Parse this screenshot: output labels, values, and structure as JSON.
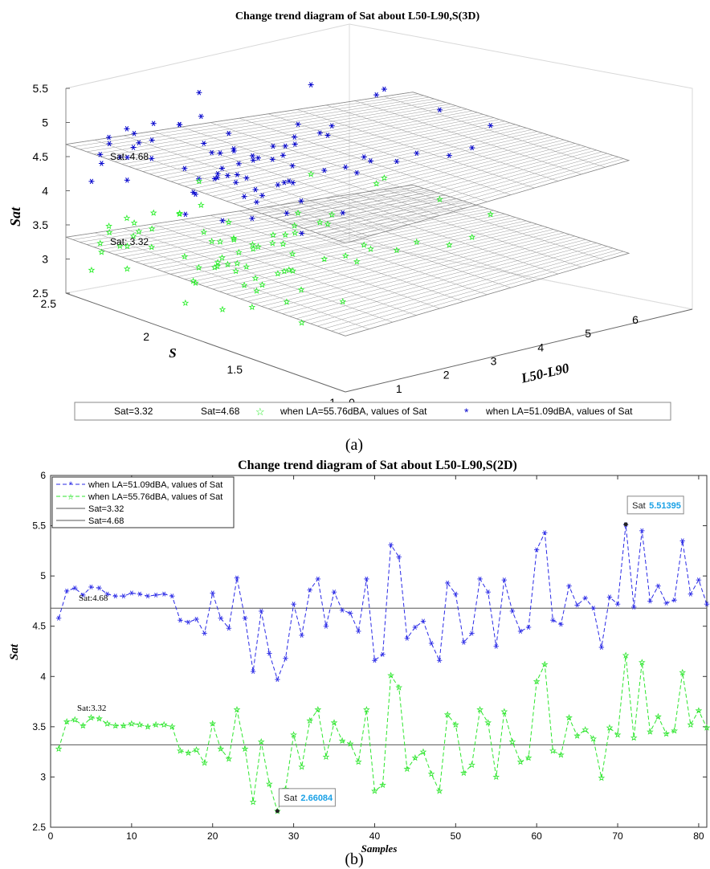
{
  "panel_a": {
    "label": "(a)",
    "title": "Change trend diagram of Sat about L50-L90,S(3D)",
    "annotations": [
      "Sat: 4.68",
      "Sat: 3.32"
    ],
    "legend": [
      "Sat=3.32",
      "Sat=4.68",
      "when LA=55.76dBA, values of Sat",
      "when LA=51.09dBA, values of Sat"
    ],
    "colors": {
      "blue": "#0000cc",
      "green": "#22ee22",
      "plane": "#999999"
    },
    "chart_data": {
      "type": "scatter",
      "title": "Change trend diagram of Sat about L50-L90,S(3D)",
      "xlabel": "L50-L90",
      "ylabel": "S",
      "zlabel": "Sat",
      "x_ticks": [
        "0",
        "1",
        "2",
        "3",
        "4",
        "5",
        "6"
      ],
      "y_ticks": [
        "1",
        "1.5",
        "2",
        "2.5"
      ],
      "z_ticks": [
        "2.5",
        "3",
        "3.5",
        "4",
        "4.5",
        "5",
        "5.5"
      ],
      "xlim": [
        0,
        6
      ],
      "ylim": [
        1,
        2.5
      ],
      "zlim": [
        2.5,
        5.5
      ],
      "planes": [
        {
          "name": "Sat=3.32",
          "z": 3.32
        },
        {
          "name": "Sat=4.68",
          "z": 4.68
        }
      ],
      "grid": true,
      "legend_position": "bottom"
    }
  },
  "panel_b": {
    "label": "(b)",
    "title": "Change trend diagram of Sat about L50-L90,S(2D)",
    "ref_labels": [
      "Sat:4.68",
      "Sat:3.32"
    ],
    "tooltips": [
      {
        "label": "Sat",
        "value": "5.51395",
        "x": 71,
        "y": 5.51395
      },
      {
        "label": "Sat",
        "value": "2.66084",
        "x": 28,
        "y": 2.66084
      }
    ],
    "colors": {
      "blue": "#2a2ae6",
      "green": "#2ee62e",
      "ref": "#555555",
      "tooltip_value": "#1aa1e6"
    },
    "chart_data": {
      "type": "line",
      "title": "Change trend diagram of Sat about L50-L90,S(2D)",
      "xlabel": "Samples",
      "ylabel": "Sat",
      "xlim": [
        0,
        81
      ],
      "ylim": [
        2.5,
        6
      ],
      "x_ticks": [
        "0",
        "10",
        "20",
        "30",
        "40",
        "50",
        "60",
        "70",
        "80"
      ],
      "y_ticks": [
        "2.5",
        "3",
        "3.5",
        "4",
        "4.5",
        "5",
        "5.5",
        "6"
      ],
      "x": [
        1,
        2,
        3,
        4,
        5,
        6,
        7,
        8,
        9,
        10,
        11,
        12,
        13,
        14,
        15,
        16,
        17,
        18,
        19,
        20,
        21,
        22,
        23,
        24,
        25,
        26,
        27,
        28,
        29,
        30,
        31,
        32,
        33,
        34,
        35,
        36,
        37,
        38,
        39,
        40,
        41,
        42,
        43,
        44,
        45,
        46,
        47,
        48,
        49,
        50,
        51,
        52,
        53,
        54,
        55,
        56,
        57,
        58,
        59,
        60,
        61,
        62,
        63,
        64,
        65,
        66,
        67,
        68,
        69,
        70,
        71,
        72,
        73,
        74,
        75,
        76,
        77,
        78,
        79,
        80,
        81
      ],
      "series": [
        {
          "name": "when LA=51.09dBA, values of Sat",
          "values": [
            4.58,
            4.85,
            4.88,
            4.81,
            4.89,
            4.88,
            4.82,
            4.8,
            4.8,
            4.83,
            4.82,
            4.8,
            4.81,
            4.82,
            4.8,
            4.56,
            4.54,
            4.57,
            4.43,
            4.83,
            4.58,
            4.48,
            4.98,
            4.58,
            4.05,
            4.65,
            4.23,
            3.97,
            4.18,
            4.72,
            4.41,
            4.86,
            4.97,
            4.5,
            4.84,
            4.66,
            4.63,
            4.45,
            4.97,
            4.16,
            4.22,
            5.31,
            5.19,
            4.38,
            4.49,
            4.55,
            4.33,
            4.16,
            4.93,
            4.82,
            4.34,
            4.43,
            4.97,
            4.84,
            4.3,
            4.96,
            4.65,
            4.45,
            4.49,
            5.26,
            5.43,
            4.56,
            4.52,
            4.9,
            4.71,
            4.78,
            4.68,
            4.29,
            4.79,
            4.72,
            5.51,
            4.69,
            5.45,
            4.75,
            4.9,
            4.73,
            4.76,
            5.35,
            4.82,
            4.96,
            4.72
          ]
        },
        {
          "name": "when LA=55.76dBA, values of Sat",
          "values": [
            3.28,
            3.55,
            3.57,
            3.51,
            3.59,
            3.58,
            3.53,
            3.51,
            3.51,
            3.53,
            3.52,
            3.5,
            3.52,
            3.52,
            3.5,
            3.26,
            3.24,
            3.27,
            3.14,
            3.53,
            3.28,
            3.18,
            3.67,
            3.28,
            2.75,
            3.35,
            2.93,
            2.66,
            2.88,
            3.42,
            3.1,
            3.56,
            3.67,
            3.2,
            3.54,
            3.36,
            3.33,
            3.15,
            3.67,
            2.86,
            2.92,
            4.01,
            3.89,
            3.08,
            3.19,
            3.25,
            3.03,
            2.86,
            3.62,
            3.52,
            3.04,
            3.12,
            3.67,
            3.54,
            3.0,
            3.65,
            3.35,
            3.15,
            3.19,
            3.95,
            4.12,
            3.26,
            3.22,
            3.59,
            3.41,
            3.47,
            3.38,
            2.99,
            3.49,
            3.42,
            4.21,
            3.39,
            4.14,
            3.45,
            3.6,
            3.43,
            3.46,
            4.04,
            3.52,
            3.66,
            3.49
          ]
        },
        {
          "name": "Sat=3.32",
          "values": [
            3.32,
            3.32
          ],
          "x": [
            0,
            81
          ]
        },
        {
          "name": "Sat=4.68",
          "values": [
            4.68,
            4.68
          ],
          "x": [
            0,
            81
          ]
        }
      ],
      "grid": false,
      "legend_position": "top-left"
    }
  }
}
